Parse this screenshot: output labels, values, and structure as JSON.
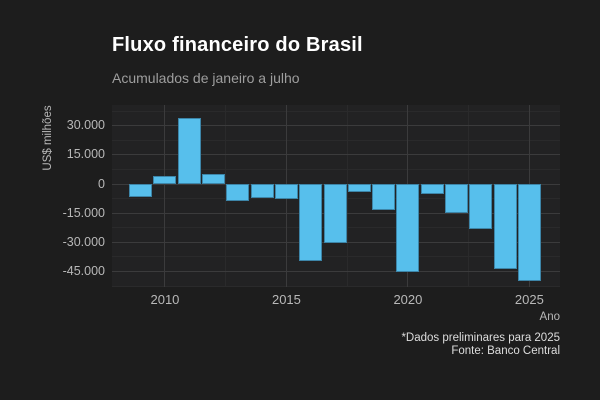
{
  "chart_data": {
    "type": "bar",
    "title": "Fluxo financeiro do Brasil",
    "subtitle": "Acumulados de janeiro a julho",
    "xlabel": "Ano",
    "ylabel": "US$ milhões",
    "x": [
      2009,
      2010,
      2011,
      2012,
      2013,
      2014,
      2015,
      2016,
      2017,
      2018,
      2019,
      2020,
      2021,
      2022,
      2023,
      2024,
      2025
    ],
    "values": [
      -6500,
      4000,
      34000,
      5000,
      -8500,
      -7000,
      -7500,
      -39500,
      -30500,
      -4000,
      -13500,
      -45500,
      -5000,
      -15000,
      -23000,
      -43500,
      -50000
    ],
    "ylim": [
      -53000,
      40700
    ],
    "xlim": [
      2007.82,
      2026.26
    ],
    "y_major_ticks": [
      {
        "value": 30000,
        "label": "30.000"
      },
      {
        "value": 15000,
        "label": "15.000"
      },
      {
        "value": 0,
        "label": "0"
      },
      {
        "value": -15000,
        "label": "-15.000"
      },
      {
        "value": -30000,
        "label": "-30.000"
      },
      {
        "value": -45000,
        "label": "-45.000"
      }
    ],
    "y_minor_ticks": [
      37500,
      22500,
      7500,
      -7500,
      -22500,
      -37500,
      -52500
    ],
    "x_major_ticks": [
      {
        "value": 2010,
        "label": "2010"
      },
      {
        "value": 2015,
        "label": "2015"
      },
      {
        "value": 2020,
        "label": "2020"
      },
      {
        "value": 2025,
        "label": "2025"
      }
    ],
    "x_minor_ticks": [
      2012.5,
      2017.5,
      2022.5
    ],
    "grid": "on",
    "legend": "none",
    "bar_color": "#57bfec",
    "bar_border_color": "#3d85a8"
  },
  "footer": {
    "note": "*Dados preliminares para 2025",
    "source": "Fonte: Banco Central"
  },
  "colors": {
    "background": "#1d1d1d",
    "panel": "#222223",
    "grid_major": "#3b3b3c",
    "grid_minor": "#2a2a2b",
    "title_text": "#ffffff",
    "subtitle_text": "#9e9e9e",
    "axis_text": "#b8b8b8",
    "footer_text": "#dddddd"
  }
}
